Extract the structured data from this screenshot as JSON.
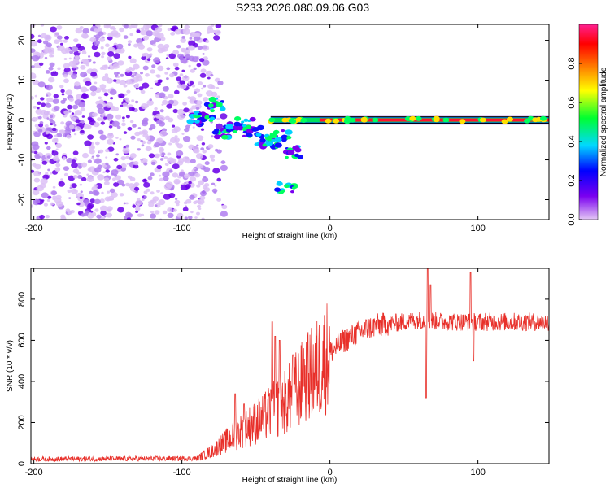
{
  "title": "S233.2026.080.09.06.G03",
  "chart_data": [
    {
      "type": "heatmap",
      "panel": "top",
      "xlabel": "Height of straight line (km)",
      "ylabel": "Frequency (Hz)",
      "xlim": [
        -202,
        148
      ],
      "ylim": [
        -25,
        24
      ],
      "xticks": [
        -200,
        -100,
        0,
        100
      ],
      "yticks": [
        -20,
        -10,
        0,
        10,
        20
      ],
      "noise_region_x": [
        -202,
        -82
      ],
      "transition_points": [
        {
          "x": -90,
          "f": 0
        },
        {
          "x": -85,
          "f": 1
        },
        {
          "x": -78,
          "f": 4
        },
        {
          "x": -72,
          "f": -3
        },
        {
          "x": -65,
          "f": -2
        },
        {
          "x": -58,
          "f": -1
        },
        {
          "x": -52,
          "f": -3
        },
        {
          "x": -45,
          "f": -5
        },
        {
          "x": -40,
          "f": -6
        },
        {
          "x": -33,
          "f": -4
        },
        {
          "x": -25,
          "f": -8
        },
        {
          "x": -30,
          "f": -17
        }
      ],
      "carrier_line": {
        "x_start": -40,
        "x_end": 148,
        "frequency": 0
      },
      "colorbar": {
        "label": "Normalized spectral amplitude",
        "range": [
          0,
          1
        ],
        "ticks": [
          0.0,
          0.2,
          0.4,
          0.6,
          0.8
        ],
        "colors": [
          "#e4c8f4",
          "#7a00f0",
          "#0000ff",
          "#00d8ff",
          "#00ff30",
          "#ffff00",
          "#ff8000",
          "#ff0000",
          "#ff2090"
        ]
      }
    },
    {
      "type": "line",
      "panel": "bottom",
      "xlabel": "Height of straight line (km)",
      "ylabel": "SNR (10 * v/v)",
      "xlim": [
        -202,
        148
      ],
      "ylim": [
        0,
        950
      ],
      "xticks": [
        -200,
        -100,
        0,
        100
      ],
      "yticks": [
        0,
        200,
        400,
        600,
        800
      ],
      "color": "#e8302a",
      "trend": [
        {
          "x": -202,
          "y": 22
        },
        {
          "x": -90,
          "y": 25
        },
        {
          "x": -80,
          "y": 60
        },
        {
          "x": -70,
          "y": 110
        },
        {
          "x": -60,
          "y": 160
        },
        {
          "x": -50,
          "y": 200
        },
        {
          "x": -40,
          "y": 250
        },
        {
          "x": -30,
          "y": 300
        },
        {
          "x": -20,
          "y": 380
        },
        {
          "x": -10,
          "y": 450
        },
        {
          "x": 0,
          "y": 540
        },
        {
          "x": 10,
          "y": 600
        },
        {
          "x": 20,
          "y": 640
        },
        {
          "x": 30,
          "y": 670
        },
        {
          "x": 40,
          "y": 680
        },
        {
          "x": 50,
          "y": 690
        },
        {
          "x": 60,
          "y": 700
        },
        {
          "x": 80,
          "y": 690
        },
        {
          "x": 100,
          "y": 690
        },
        {
          "x": 148,
          "y": 690
        }
      ],
      "spikes": [
        {
          "x": -64,
          "y": 340
        },
        {
          "x": -58,
          "y": 290
        },
        {
          "x": -39,
          "y": 690
        },
        {
          "x": -37,
          "y": 620
        },
        {
          "x": -34,
          "y": 600
        },
        {
          "x": -25,
          "y": 530
        },
        {
          "x": -18,
          "y": 560
        },
        {
          "x": 65,
          "y": 320
        },
        {
          "x": 66,
          "y": 950
        },
        {
          "x": 68,
          "y": 870
        },
        {
          "x": 95,
          "y": 930
        },
        {
          "x": 97,
          "y": 500
        }
      ]
    }
  ]
}
